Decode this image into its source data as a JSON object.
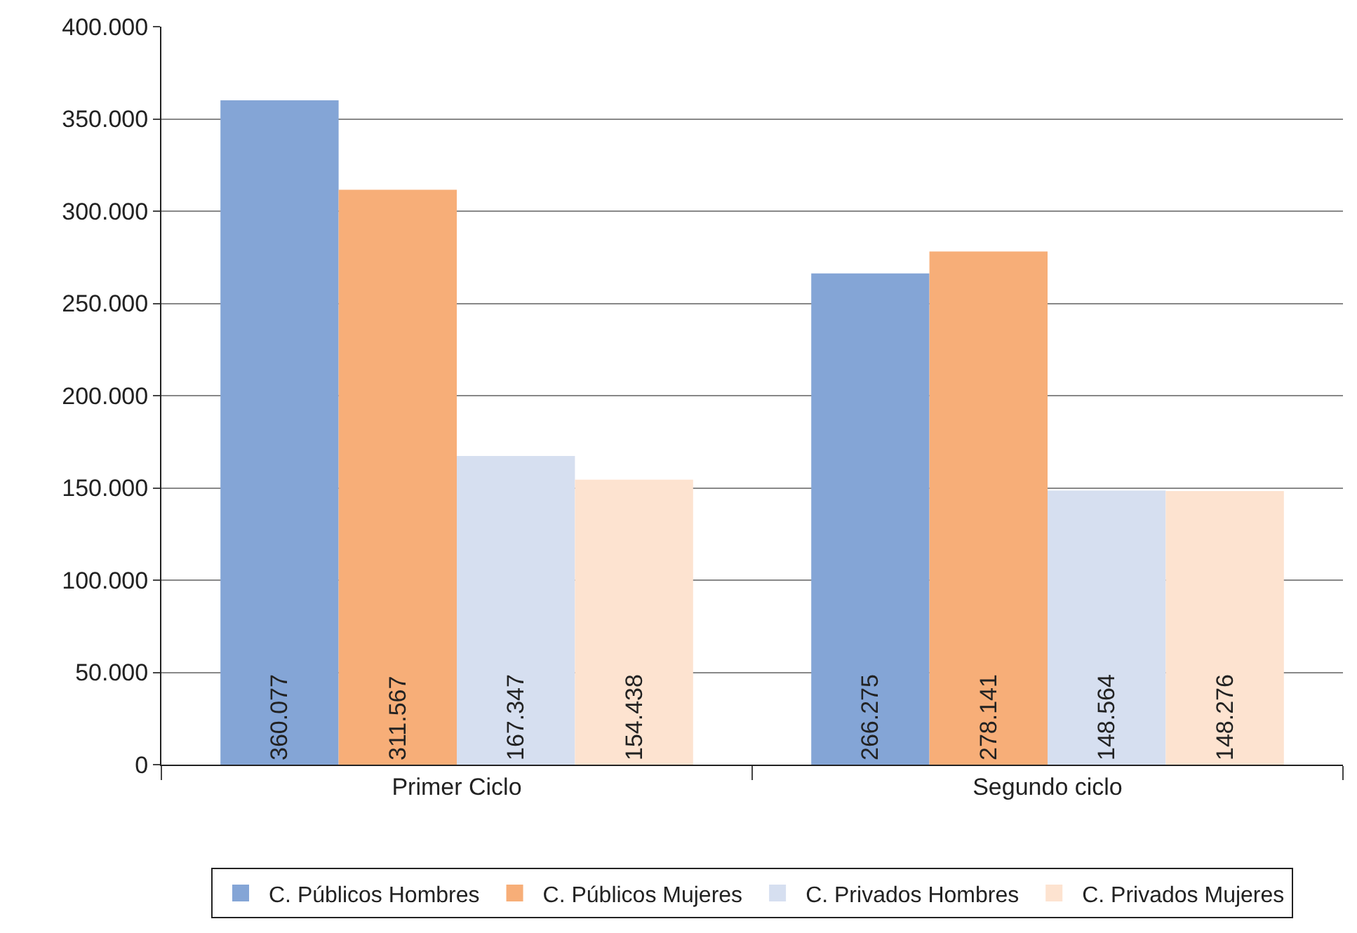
{
  "chart_data": {
    "type": "bar",
    "categories": [
      "Primer Ciclo",
      "Segundo ciclo"
    ],
    "series": [
      {
        "name": "C. Públicos Hombres",
        "color": "#84a5d6",
        "values": [
          360077,
          266275
        ],
        "value_labels": [
          "360.077",
          "266.275"
        ]
      },
      {
        "name": "C. Públicos Mujeres",
        "color": "#f7ae78",
        "values": [
          311567,
          278141
        ],
        "value_labels": [
          "311.567",
          "278.141"
        ]
      },
      {
        "name": "C. Privados Hombres",
        "color": "#d6dff0",
        "values": [
          167347,
          148564
        ],
        "value_labels": [
          "167.347",
          "148.564"
        ]
      },
      {
        "name": "C. Privados Mujeres",
        "color": "#fde3d0",
        "values": [
          154438,
          148276
        ],
        "value_labels": [
          "154.438",
          "148.276"
        ]
      }
    ],
    "ylim": [
      0,
      400000
    ],
    "yticks": [
      {
        "value": 0,
        "label": "0"
      },
      {
        "value": 50000,
        "label": "50.000"
      },
      {
        "value": 100000,
        "label": "100.000"
      },
      {
        "value": 150000,
        "label": "150.000"
      },
      {
        "value": 200000,
        "label": "200.000"
      },
      {
        "value": 250000,
        "label": "250.000"
      },
      {
        "value": 300000,
        "label": "300.000"
      },
      {
        "value": 350000,
        "label": "350.000"
      },
      {
        "value": 400000,
        "label": "400.000"
      }
    ],
    "grid": "y",
    "legend": "bottom"
  }
}
